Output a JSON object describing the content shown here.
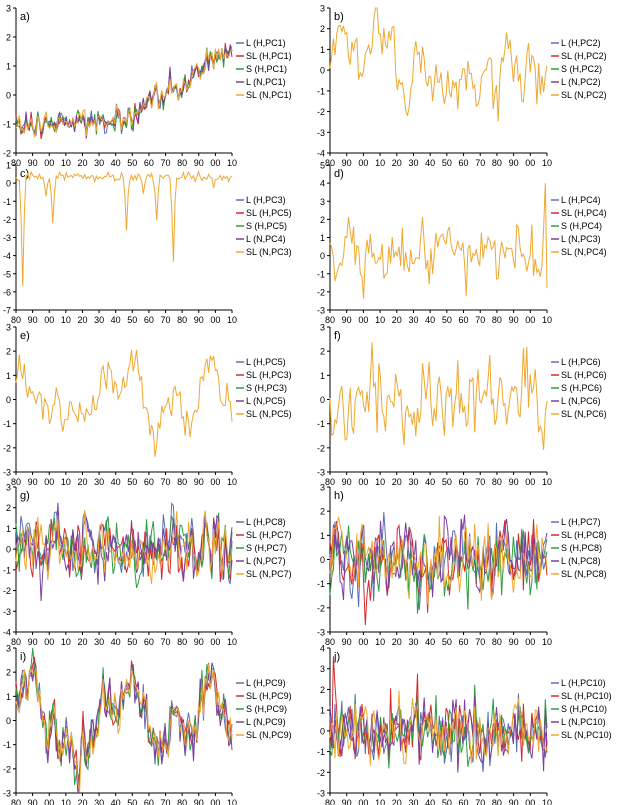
{
  "figure": {
    "colors": {
      "L_H": "#5b6fb5",
      "SL_H": "#d42a2a",
      "S_H": "#2e9e3e",
      "L_N": "#7b3f9e",
      "SL_N": "#f0a830",
      "axis": "#000000"
    }
  },
  "chart_data": [
    {
      "panel": "a)",
      "type": "line",
      "ylim": [
        -2,
        3
      ],
      "yticks": [
        "-2",
        "-1",
        "0",
        "1",
        "2",
        "3"
      ],
      "xticks": [
        "80",
        "90",
        "00",
        "10",
        "20",
        "30",
        "40",
        "50",
        "60",
        "70",
        "80",
        "90",
        "00",
        "10"
      ],
      "legend": [
        "L  (H,PC1)",
        "SL (H,PC1)",
        "S  (H,PC1)",
        "L  (N,PC1)",
        "SL (N,PC1)"
      ],
      "coincident": false,
      "kind": "trend"
    },
    {
      "panel": "b)",
      "type": "line",
      "ylim": [
        -4,
        3
      ],
      "yticks": [
        "-4",
        "-3",
        "-2",
        "-1",
        "0",
        "1",
        "2",
        "3"
      ],
      "xticks": [
        "80",
        "90",
        "00",
        "10",
        "20",
        "30",
        "40",
        "50",
        "60",
        "70",
        "80",
        "90",
        "00",
        "10"
      ],
      "legend": [
        "L  (H,PC2)",
        "SL (H,PC2)",
        "S  (H,PC2)",
        "L  (N,PC2)",
        "SL (N,PC2)"
      ],
      "coincident": true,
      "kind": "pc2"
    },
    {
      "panel": "c)",
      "type": "line",
      "ylim": [
        -7,
        1
      ],
      "yticks": [
        "-7",
        "-6",
        "-5",
        "-4",
        "-3",
        "-2",
        "-1",
        "0",
        "1"
      ],
      "xticks": [
        "80",
        "90",
        "00",
        "10",
        "20",
        "30",
        "40",
        "50",
        "60",
        "70",
        "80",
        "90",
        "00",
        "10"
      ],
      "legend": [
        "L  (H,PC3)",
        "SL (H,PC5)",
        "S  (H,PC5)",
        "L  (N,PC4)",
        "SL (N,PC3)"
      ],
      "coincident": true,
      "kind": "dips"
    },
    {
      "panel": "d)",
      "type": "line",
      "ylim": [
        -3,
        5
      ],
      "yticks": [
        "-3",
        "-2",
        "-1",
        "0",
        "1",
        "2",
        "3",
        "4",
        "5"
      ],
      "xticks": [
        "80",
        "90",
        "00",
        "10",
        "20",
        "30",
        "40",
        "50",
        "60",
        "70",
        "80",
        "90",
        "00",
        "10"
      ],
      "legend": [
        "L  (H,PC4)",
        "SL (H,PC4)",
        "S  (H,PC4)",
        "L  (N,PC3)",
        "SL (N,PC4)"
      ],
      "coincident": true,
      "kind": "noise_spike"
    },
    {
      "panel": "e)",
      "type": "line",
      "ylim": [
        -3,
        3
      ],
      "yticks": [
        "-3",
        "-2",
        "-1",
        "0",
        "1",
        "2",
        "3"
      ],
      "xticks": [
        "80",
        "90",
        "00",
        "10",
        "20",
        "30",
        "40",
        "50",
        "60",
        "70",
        "80",
        "90",
        "00",
        "10"
      ],
      "legend": [
        "L  (H,PC5)",
        "SL (H,PC3)",
        "S  (H,PC3)",
        "L  (N,PC5)",
        "SL (N,PC5)"
      ],
      "coincident": true,
      "kind": "wave"
    },
    {
      "panel": "f)",
      "type": "line",
      "ylim": [
        -3,
        3
      ],
      "yticks": [
        "-3",
        "-2",
        "-1",
        "0",
        "1",
        "2",
        "3"
      ],
      "xticks": [
        "80",
        "90",
        "00",
        "10",
        "20",
        "30",
        "40",
        "50",
        "60",
        "70",
        "80",
        "90",
        "00",
        "10"
      ],
      "legend": [
        "L  (H,PC6)",
        "SL (H,PC6)",
        "S  (H,PC6)",
        "L  (N,PC6)",
        "SL (N,PC6)"
      ],
      "coincident": true,
      "kind": "noise"
    },
    {
      "panel": "g)",
      "type": "line",
      "ylim": [
        -4,
        3
      ],
      "yticks": [
        "-4",
        "-3",
        "-2",
        "-1",
        "0",
        "1",
        "2",
        "3"
      ],
      "xticks": [
        "80",
        "90",
        "00",
        "10",
        "20",
        "30",
        "40",
        "50",
        "60",
        "70",
        "80",
        "90",
        "00",
        "10"
      ],
      "legend": [
        "L  (H,PC8)",
        "SL (H,PC7)",
        "S  (H,PC7)",
        "L  (N,PC7)",
        "SL (N,PC7)"
      ],
      "coincident": false,
      "kind": "noise"
    },
    {
      "panel": "h)",
      "type": "line",
      "ylim": [
        -3,
        3
      ],
      "yticks": [
        "-3",
        "-2",
        "-1",
        "0",
        "1",
        "2",
        "3"
      ],
      "xticks": [
        "80",
        "90",
        "00",
        "10",
        "20",
        "30",
        "40",
        "50",
        "60",
        "70",
        "80",
        "90",
        "00",
        "10"
      ],
      "legend": [
        "L  (H,PC7)",
        "SL (H,PC8)",
        "S  (H,PC8)",
        "L  (N,PC8)",
        "SL (N,PC8)"
      ],
      "coincident": false,
      "kind": "noise"
    },
    {
      "panel": "i)",
      "type": "line",
      "ylim": [
        -3,
        3
      ],
      "yticks": [
        "-3",
        "-2",
        "-1",
        "0",
        "1",
        "2",
        "3"
      ],
      "xticks": [
        "80",
        "90",
        "00",
        "10",
        "20",
        "30",
        "40",
        "50",
        "60",
        "70",
        "80",
        "90",
        "00",
        "10"
      ],
      "legend": [
        "L  (H,PC9)",
        "SL (H,PC9)",
        "S  (H,PC9)",
        "L  (N,PC9)",
        "SL (N,PC9)"
      ],
      "coincident": false,
      "kind": "wave"
    },
    {
      "panel": "j)",
      "type": "line",
      "ylim": [
        -3,
        4
      ],
      "yticks": [
        "-3",
        "-2",
        "-1",
        "0",
        "1",
        "2",
        "3",
        "4"
      ],
      "xticks": [
        "80",
        "90",
        "00",
        "10",
        "20",
        "30",
        "40",
        "50",
        "60",
        "70",
        "80",
        "90",
        "00",
        "10"
      ],
      "legend": [
        "L  (H,PC10)",
        "SL (H,PC10)",
        "S  (H,PC10)",
        "L  (N,PC10)",
        "SL (N,PC10)"
      ],
      "coincident": false,
      "kind": "fastnoise"
    }
  ]
}
